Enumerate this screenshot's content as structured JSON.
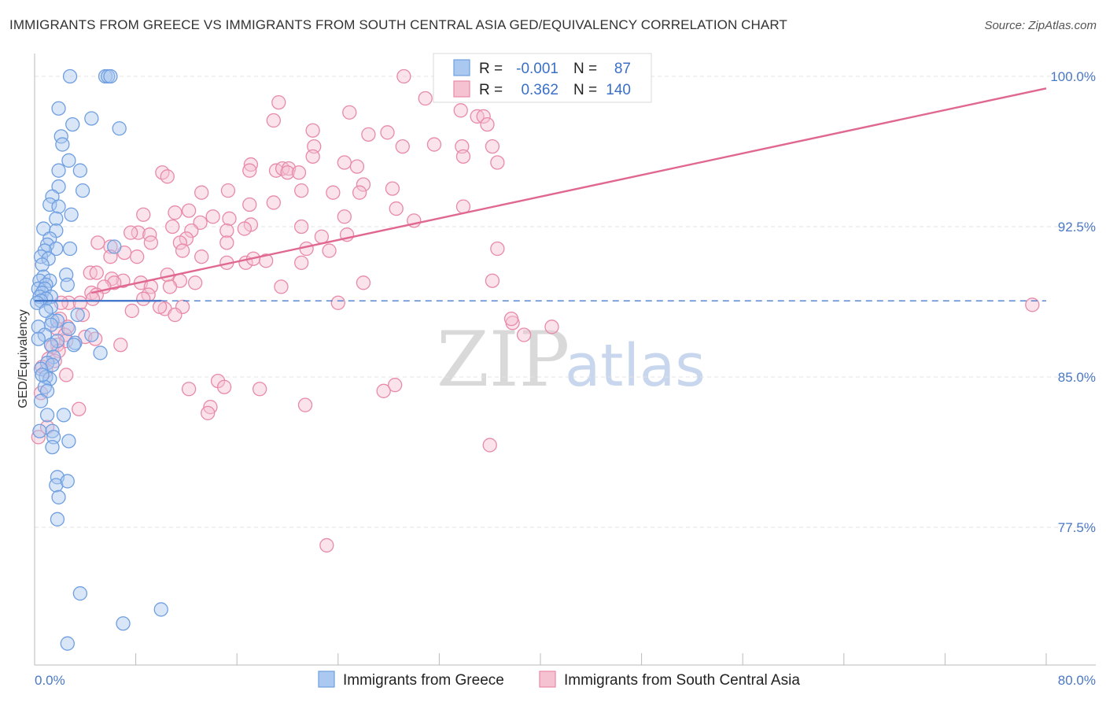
{
  "header": {
    "title": "IMMIGRANTS FROM GREECE VS IMMIGRANTS FROM SOUTH CENTRAL ASIA GED/EQUIVALENCY CORRELATION CHART",
    "source": "Source: ZipAtlas.com"
  },
  "watermark": {
    "zip": "ZIP",
    "atlas": "atlas"
  },
  "colors": {
    "greece": "#6f9fe0",
    "greece_fill": "#aac8f0",
    "greece_line": "#3a70c9",
    "sca": "#e88aa8",
    "sca_fill": "#f5c2d2",
    "sca_line": "#e06890",
    "grid": "#e3e3e3",
    "axis_text": "#4a78c4"
  },
  "legend": {
    "rows": [
      {
        "r_label": "R =",
        "r_value": "-0.001",
        "n_label": "N =",
        "n_value": "87"
      },
      {
        "r_label": "R =",
        "r_value": "0.362",
        "n_label": "N =",
        "n_value": "140"
      }
    ]
  },
  "bottom_legend": [
    {
      "label": "Immigrants from Greece"
    },
    {
      "label": "Immigrants from South Central Asia"
    }
  ],
  "chart_data": {
    "type": "scatter",
    "title": "IMMIGRANTS FROM GREECE VS IMMIGRANTS FROM SOUTH CENTRAL ASIA GED/EQUIVALENCY CORRELATION CHART",
    "xlabel": "",
    "ylabel": "GED/Equivalency",
    "xlim": [
      0,
      80
    ],
    "ylim": [
      70.0,
      101.0
    ],
    "x_tick_labels": [
      "0.0%",
      "80.0%"
    ],
    "y_ticks": [
      77.5,
      85.0,
      92.5,
      100.0
    ],
    "y_tick_labels": [
      "77.5%",
      "85.0%",
      "92.5%",
      "100.0%"
    ],
    "grid": true,
    "legend_position": "top-center",
    "series": [
      {
        "name": "Immigrants from Greece",
        "R": -0.001,
        "N": 87,
        "trend": {
          "x": [
            0,
            10
          ],
          "y": [
            88.8,
            88.8
          ],
          "dashed_extension_to_x": 80
        },
        "points": [
          [
            2.8,
            100.0
          ],
          [
            5.6,
            100.0
          ],
          [
            5.8,
            100.0
          ],
          [
            6.0,
            100.0
          ],
          [
            1.9,
            98.4
          ],
          [
            4.5,
            97.9
          ],
          [
            3.0,
            97.6
          ],
          [
            6.7,
            97.4
          ],
          [
            2.1,
            97.0
          ],
          [
            2.2,
            96.6
          ],
          [
            2.7,
            95.8
          ],
          [
            1.9,
            95.3
          ],
          [
            3.6,
            95.3
          ],
          [
            1.9,
            94.5
          ],
          [
            3.8,
            94.3
          ],
          [
            1.4,
            94.0
          ],
          [
            1.2,
            93.6
          ],
          [
            1.9,
            93.5
          ],
          [
            2.9,
            93.1
          ],
          [
            1.7,
            92.9
          ],
          [
            0.7,
            92.4
          ],
          [
            1.7,
            92.3
          ],
          [
            1.2,
            91.9
          ],
          [
            1.0,
            91.6
          ],
          [
            1.7,
            91.4
          ],
          [
            0.8,
            91.3
          ],
          [
            2.8,
            91.4
          ],
          [
            6.3,
            91.5
          ],
          [
            0.5,
            91.0
          ],
          [
            1.1,
            90.9
          ],
          [
            0.6,
            90.6
          ],
          [
            2.5,
            90.1
          ],
          [
            0.7,
            90.0
          ],
          [
            0.4,
            89.8
          ],
          [
            1.2,
            89.8
          ],
          [
            0.9,
            89.6
          ],
          [
            2.6,
            89.6
          ],
          [
            0.3,
            89.4
          ],
          [
            0.8,
            89.4
          ],
          [
            0.6,
            89.2
          ],
          [
            0.4,
            89.0
          ],
          [
            1.3,
            89.0
          ],
          [
            0.9,
            88.9
          ],
          [
            0.5,
            88.8
          ],
          [
            0.2,
            88.7
          ],
          [
            1.3,
            88.5
          ],
          [
            3.4,
            88.1
          ],
          [
            1.4,
            87.8
          ],
          [
            1.8,
            87.8
          ],
          [
            1.3,
            87.6
          ],
          [
            0.3,
            87.5
          ],
          [
            2.7,
            87.4
          ],
          [
            4.5,
            87.1
          ],
          [
            0.8,
            87.1
          ],
          [
            1.8,
            86.8
          ],
          [
            1.3,
            86.6
          ],
          [
            3.2,
            86.7
          ],
          [
            3.1,
            86.6
          ],
          [
            5.2,
            86.2
          ],
          [
            1.5,
            86.0
          ],
          [
            1.0,
            85.7
          ],
          [
            1.4,
            85.6
          ],
          [
            0.5,
            85.4
          ],
          [
            0.9,
            85.0
          ],
          [
            1.2,
            84.9
          ],
          [
            0.8,
            84.5
          ],
          [
            1.0,
            83.1
          ],
          [
            2.3,
            83.1
          ],
          [
            1.4,
            82.3
          ],
          [
            1.5,
            82.0
          ],
          [
            0.4,
            82.3
          ],
          [
            2.7,
            81.8
          ],
          [
            1.4,
            81.5
          ],
          [
            1.8,
            80.0
          ],
          [
            1.7,
            79.6
          ],
          [
            2.6,
            79.8
          ],
          [
            1.9,
            79.0
          ],
          [
            1.8,
            77.9
          ],
          [
            3.6,
            74.2
          ],
          [
            10.0,
            73.4
          ],
          [
            7.0,
            72.7
          ],
          [
            2.6,
            71.7
          ],
          [
            0.3,
            86.9
          ],
          [
            0.6,
            85.1
          ],
          [
            1.0,
            84.3
          ],
          [
            0.5,
            83.8
          ],
          [
            0.9,
            88.3
          ]
        ]
      },
      {
        "name": "Immigrants from South Central Asia",
        "R": 0.362,
        "N": 140,
        "trend": {
          "x": [
            4.5,
            80
          ],
          "y": [
            89.2,
            99.4
          ]
        },
        "points": [
          [
            29.2,
            100.0
          ],
          [
            30.9,
            98.9
          ],
          [
            19.3,
            98.7
          ],
          [
            33.7,
            98.3
          ],
          [
            24.9,
            98.2
          ],
          [
            35.0,
            98.0
          ],
          [
            35.5,
            98.0
          ],
          [
            18.9,
            97.8
          ],
          [
            27.9,
            97.2
          ],
          [
            22.0,
            97.3
          ],
          [
            26.4,
            97.1
          ],
          [
            35.8,
            97.6
          ],
          [
            22.1,
            96.5
          ],
          [
            29.1,
            96.5
          ],
          [
            31.6,
            96.6
          ],
          [
            33.8,
            96.5
          ],
          [
            36.2,
            96.5
          ],
          [
            22.0,
            96.0
          ],
          [
            33.9,
            96.0
          ],
          [
            17.1,
            95.6
          ],
          [
            24.5,
            95.7
          ],
          [
            25.5,
            95.5
          ],
          [
            36.6,
            95.7
          ],
          [
            17.0,
            95.3
          ],
          [
            19.1,
            95.3
          ],
          [
            19.6,
            95.4
          ],
          [
            20.1,
            95.4
          ],
          [
            20.0,
            95.2
          ],
          [
            20.9,
            95.2
          ],
          [
            10.1,
            95.2
          ],
          [
            10.5,
            95.0
          ],
          [
            26.0,
            94.6
          ],
          [
            21.1,
            94.3
          ],
          [
            13.2,
            94.2
          ],
          [
            15.3,
            94.3
          ],
          [
            23.6,
            94.2
          ],
          [
            25.7,
            94.2
          ],
          [
            28.3,
            94.4
          ],
          [
            18.9,
            93.7
          ],
          [
            17.0,
            93.6
          ],
          [
            28.6,
            93.4
          ],
          [
            33.9,
            93.5
          ],
          [
            11.1,
            93.2
          ],
          [
            12.2,
            93.3
          ],
          [
            8.6,
            93.1
          ],
          [
            14.1,
            93.0
          ],
          [
            24.5,
            93.0
          ],
          [
            15.4,
            92.9
          ],
          [
            13.1,
            92.7
          ],
          [
            17.1,
            92.6
          ],
          [
            10.9,
            92.5
          ],
          [
            21.1,
            92.5
          ],
          [
            30.0,
            92.8
          ],
          [
            16.6,
            92.4
          ],
          [
            8.2,
            92.2
          ],
          [
            7.6,
            92.2
          ],
          [
            9.1,
            92.1
          ],
          [
            15.2,
            92.3
          ],
          [
            12.4,
            92.3
          ],
          [
            24.7,
            92.1
          ],
          [
            22.7,
            92.0
          ],
          [
            12.0,
            91.9
          ],
          [
            15.2,
            91.7
          ],
          [
            6.0,
            91.5
          ],
          [
            5.0,
            91.7
          ],
          [
            11.5,
            91.7
          ],
          [
            9.2,
            91.7
          ],
          [
            21.5,
            91.4
          ],
          [
            36.6,
            91.4
          ],
          [
            11.7,
            91.3
          ],
          [
            23.3,
            91.3
          ],
          [
            13.2,
            91.0
          ],
          [
            7.1,
            91.2
          ],
          [
            6.0,
            91.0
          ],
          [
            8.1,
            91.0
          ],
          [
            15.2,
            90.7
          ],
          [
            16.7,
            90.7
          ],
          [
            17.3,
            90.9
          ],
          [
            18.3,
            90.8
          ],
          [
            21.1,
            90.7
          ],
          [
            4.4,
            90.2
          ],
          [
            4.9,
            90.2
          ],
          [
            10.5,
            90.1
          ],
          [
            11.5,
            89.8
          ],
          [
            10.7,
            89.5
          ],
          [
            7.0,
            89.8
          ],
          [
            6.1,
            89.9
          ],
          [
            6.3,
            89.7
          ],
          [
            5.5,
            89.5
          ],
          [
            8.4,
            89.7
          ],
          [
            9.2,
            89.5
          ],
          [
            12.7,
            89.7
          ],
          [
            19.5,
            89.5
          ],
          [
            26.0,
            89.7
          ],
          [
            36.2,
            89.8
          ],
          [
            4.5,
            89.2
          ],
          [
            4.9,
            89.1
          ],
          [
            9.0,
            89.1
          ],
          [
            4.6,
            88.9
          ],
          [
            2.7,
            88.7
          ],
          [
            3.6,
            88.7
          ],
          [
            2.1,
            88.7
          ],
          [
            8.6,
            88.9
          ],
          [
            11.7,
            88.5
          ],
          [
            10.3,
            88.4
          ],
          [
            9.9,
            88.5
          ],
          [
            11.1,
            88.1
          ],
          [
            7.7,
            88.3
          ],
          [
            3.8,
            88.1
          ],
          [
            2.0,
            87.9
          ],
          [
            2.6,
            87.5
          ],
          [
            1.8,
            87.4
          ],
          [
            2.4,
            87.1
          ],
          [
            37.8,
            87.7
          ],
          [
            40.9,
            87.5
          ],
          [
            37.7,
            87.9
          ],
          [
            38.7,
            87.1
          ],
          [
            4.0,
            87.0
          ],
          [
            4.8,
            86.9
          ],
          [
            6.8,
            86.6
          ],
          [
            2.5,
            86.8
          ],
          [
            1.8,
            86.6
          ],
          [
            1.4,
            86.5
          ],
          [
            1.9,
            86.3
          ],
          [
            1.1,
            85.9
          ],
          [
            1.6,
            85.8
          ],
          [
            0.6,
            85.5
          ],
          [
            0.9,
            85.3
          ],
          [
            2.5,
            85.1
          ],
          [
            14.5,
            84.8
          ],
          [
            15.0,
            84.5
          ],
          [
            12.2,
            84.4
          ],
          [
            17.8,
            84.4
          ],
          [
            28.5,
            84.6
          ],
          [
            27.6,
            84.3
          ],
          [
            21.4,
            83.6
          ],
          [
            13.9,
            83.5
          ],
          [
            13.7,
            83.2
          ],
          [
            3.5,
            83.4
          ],
          [
            1.0,
            82.5
          ],
          [
            0.5,
            84.2
          ],
          [
            0.3,
            82.0
          ],
          [
            36.0,
            81.6
          ],
          [
            23.1,
            76.6
          ],
          [
            78.9,
            88.6
          ],
          [
            24.0,
            88.7
          ]
        ]
      }
    ]
  }
}
